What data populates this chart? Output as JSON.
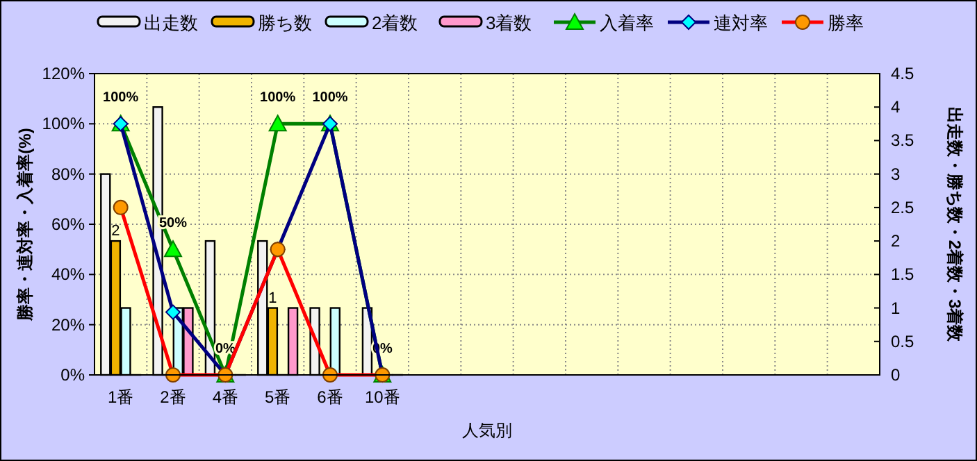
{
  "chart_data": {
    "type": "bar",
    "categories": [
      "1番",
      "2番",
      "4番",
      "5番",
      "6番",
      "10番",
      null,
      null,
      null,
      null,
      null,
      null,
      null,
      null,
      null
    ],
    "xlabel": "人気別",
    "ylabel": "勝率・連対率・入着率(%)",
    "y2label": "出走数・勝ち数・2着数・3着数",
    "ylim": [
      0,
      120
    ],
    "yticks": [
      {
        "value": 0,
        "label": "0%"
      },
      {
        "value": 20,
        "label": "20%"
      },
      {
        "value": 40,
        "label": "40%"
      },
      {
        "value": 60,
        "label": "60%"
      },
      {
        "value": 80,
        "label": "80%"
      },
      {
        "value": 100,
        "label": "100%"
      },
      {
        "value": 120,
        "label": "120%"
      }
    ],
    "y2lim": [
      0,
      4.5
    ],
    "y2ticks": [
      0,
      0.5,
      1,
      1.5,
      2,
      2.5,
      3,
      3.5,
      4,
      4.5
    ],
    "grid": true,
    "legend": "top",
    "series": [
      {
        "name": "出走数",
        "axis": "y2",
        "color": "#f2f2f2",
        "values": [
          3,
          4,
          2,
          2,
          1,
          1,
          null,
          null,
          null,
          null,
          null,
          null,
          null,
          null,
          null
        ]
      },
      {
        "name": "勝ち数",
        "axis": "y2",
        "color": "#f0b400",
        "values": [
          2,
          0,
          0,
          1,
          0,
          0,
          null,
          null,
          null,
          null,
          null,
          null,
          null,
          null,
          null
        ],
        "value_labels": [
          "2",
          null,
          null,
          "1",
          null,
          null,
          null,
          null,
          null,
          null,
          null,
          null,
          null,
          null,
          null
        ]
      },
      {
        "name": "2着数",
        "axis": "y2",
        "color": "#ccffff",
        "values": [
          1,
          1,
          0,
          0,
          1,
          0,
          null,
          null,
          null,
          null,
          null,
          null,
          null,
          null,
          null
        ]
      },
      {
        "name": "3着数",
        "axis": "y2",
        "color": "#ff99cc",
        "values": [
          0,
          1,
          0,
          1,
          0,
          0,
          null,
          null,
          null,
          null,
          null,
          null,
          null,
          null,
          null
        ]
      },
      {
        "name": "入着率",
        "type": "line",
        "marker": "triangle",
        "color": "#008000",
        "values": [
          100,
          50,
          0,
          100,
          100,
          0,
          null,
          null,
          null,
          null,
          null,
          null,
          null,
          null,
          null
        ],
        "value_labels": [
          "100%",
          "50%",
          "0%",
          "100%",
          "100%",
          "0%",
          null,
          null,
          null,
          null,
          null,
          null,
          null,
          null,
          null
        ]
      },
      {
        "name": "連対率",
        "type": "line",
        "marker": "diamond",
        "color": "#000080",
        "values": [
          100,
          25,
          0,
          50,
          100,
          0,
          null,
          null,
          null,
          null,
          null,
          null,
          null,
          null,
          null
        ]
      },
      {
        "name": "勝率",
        "type": "line",
        "marker": "circle",
        "color": "#ff0000",
        "values": [
          66.7,
          0,
          0,
          50,
          0,
          0,
          null,
          null,
          null,
          null,
          null,
          null,
          null,
          null,
          null
        ]
      }
    ]
  }
}
